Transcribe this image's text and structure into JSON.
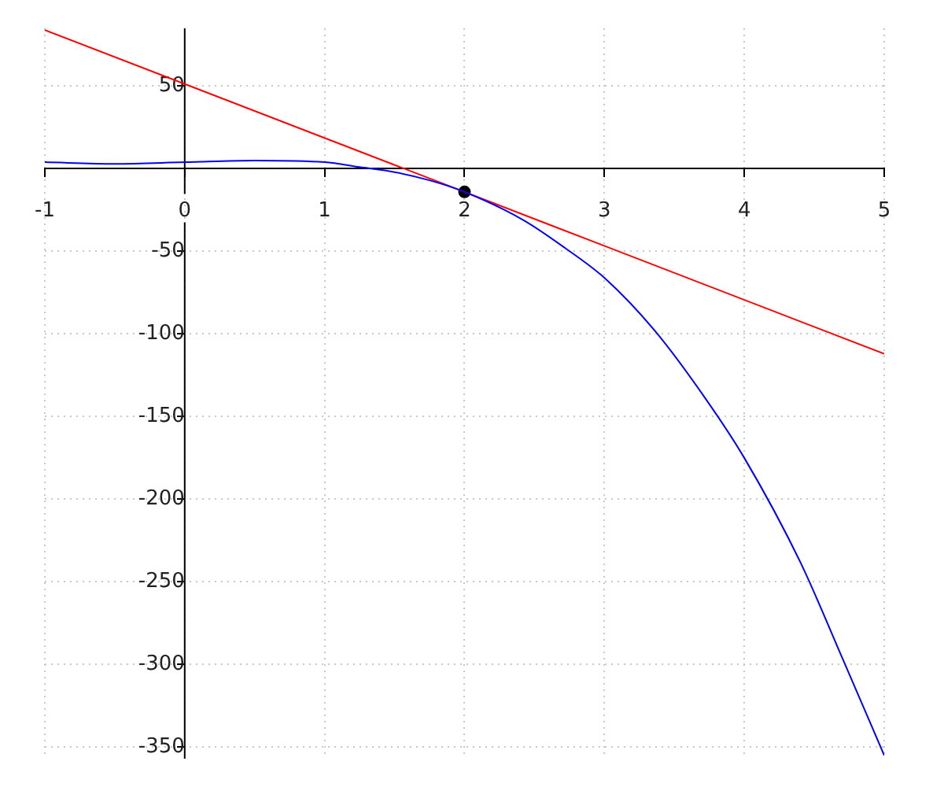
{
  "chart_data": {
    "type": "line",
    "xlim": [
      -1,
      5
    ],
    "ylim": [
      -357,
      85
    ],
    "xticks": [
      -1,
      0,
      1,
      2,
      3,
      4,
      5
    ],
    "yticks": [
      -350,
      -300,
      -250,
      -200,
      -150,
      -100,
      -50,
      50
    ],
    "grid": true,
    "series": [
      {
        "type": "line",
        "color": "#0000ff",
        "marker": "none",
        "x": [
          -1,
          -0.5,
          0,
          0.5,
          1,
          1.25,
          1.5,
          1.75,
          2,
          2.42,
          2.72,
          3,
          3.36,
          3.73,
          4,
          4.4,
          4.7,
          5
        ],
        "values": [
          4,
          3,
          4,
          5,
          4,
          1,
          -2,
          -7,
          -14,
          -31,
          -48,
          -66,
          -98,
          -140,
          -175,
          -238,
          -296,
          -355
        ]
      },
      {
        "type": "line",
        "color": "#ff0000",
        "marker": "none",
        "x": [
          -1,
          5
        ],
        "values": [
          84,
          -112
        ]
      },
      {
        "type": "scatter",
        "color": "#000000",
        "marker": "circle",
        "x": [
          2
        ],
        "values": [
          -14
        ]
      }
    ]
  }
}
